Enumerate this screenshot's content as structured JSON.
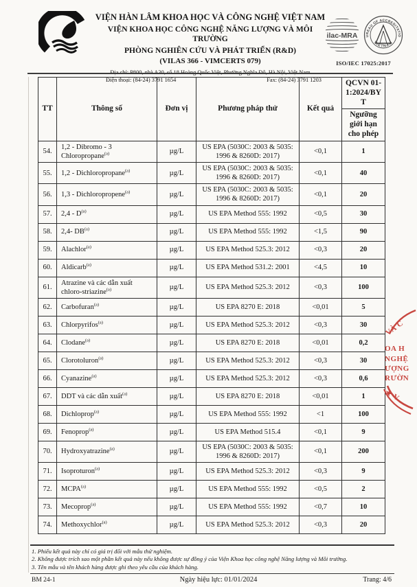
{
  "header": {
    "org_line1": "VIỆN HÀN LÂM KHOA HỌC VÀ CÔNG NGHỆ VIỆT NAM",
    "org_line2": "VIỆN KHOA HỌC CÔNG NGHỆ NĂNG LƯỢNG VÀ MÔI TRƯỜNG",
    "dept": "PHÒNG NGHIÊN CỨU VÀ PHÁT TRIỂN (R&D)",
    "certs": "(VILAS 366 - VIMCERTS 079)",
    "address": "Địa chỉ: P800, nhà A30, số 18 Hoàng Quốc Việt, Phường Nghĩa Đô, Hà Nội, Việt Nam",
    "phone": "Điện thoại: (84-24) 3791 1654",
    "fax": "Fax: (84-24) 3791 1203",
    "ilac_label": "ilac-MRA",
    "accreditation_ring_top": "BUREAU OF ACCREDITATION",
    "accreditation_ring_bottom": "VIETNAM",
    "iso_label": "ISO/IEC 17025:2017"
  },
  "table": {
    "headers": {
      "tt": "TT",
      "param": "Thông số",
      "unit": "Đơn vị",
      "method": "Phương pháp thử",
      "result": "Kết quả",
      "qcvn": "QCVN 01-1:2024/BYT",
      "limit": "Ngưỡng giới hạn cho phép"
    },
    "rows": [
      {
        "tt": "54.",
        "param": "1,2 - Dibromo - 3 Chloropropane",
        "sup": "(a)",
        "unit": "µg/L",
        "method": "US EPA (5030C: 2003 & 5035: 1996 & 8260D: 2017)",
        "result": "<0,1",
        "limit": "1"
      },
      {
        "tt": "55.",
        "param": "1,2 - Dichloropropane",
        "sup": "(a)",
        "unit": "µg/L",
        "method": "US EPA (5030C: 2003 & 5035: 1996 & 8260D: 2017)",
        "result": "<0,1",
        "limit": "40"
      },
      {
        "tt": "56.",
        "param": "1,3 - Dichloropropene",
        "sup": "(a)",
        "unit": "µg/L",
        "method": "US EPA (5030C: 2003 & 5035: 1996 & 8260D: 2017)",
        "result": "<0,1",
        "limit": "20"
      },
      {
        "tt": "57.",
        "param": "2,4 - D",
        "sup": "(a)",
        "unit": "µg/L",
        "method": "US EPA Method 555: 1992",
        "result": "<0,5",
        "limit": "30"
      },
      {
        "tt": "58.",
        "param": "2,4- DB",
        "sup": "(a)",
        "unit": "µg/L",
        "method": "US EPA Method 555: 1992",
        "result": "<1,5",
        "limit": "90"
      },
      {
        "tt": "59.",
        "param": "Alachlor",
        "sup": "(a)",
        "unit": "µg/L",
        "method": "US EPA Method 525.3: 2012",
        "result": "<0,3",
        "limit": "20"
      },
      {
        "tt": "60.",
        "param": "Aldicarb",
        "sup": "(a)",
        "unit": "µg/L",
        "method": "US EPA Method 531.2: 2001",
        "result": "<4,5",
        "limit": "10"
      },
      {
        "tt": "61.",
        "param": "Atrazine và các dẫn xuất chloro-striazine",
        "sup": "(a)",
        "unit": "µg/L",
        "method": "US EPA Method 525.3: 2012",
        "result": "<0,3",
        "limit": "100"
      },
      {
        "tt": "62.",
        "param": "Carbofuran",
        "sup": "(a)",
        "unit": "µg/L",
        "method": "US EPA 8270 E: 2018",
        "result": "<0,01",
        "limit": "5"
      },
      {
        "tt": "63.",
        "param": "Chlorpyrifos",
        "sup": "(a)",
        "unit": "µg/L",
        "method": "US EPA Method 525.3: 2012",
        "result": "<0,3",
        "limit": "30"
      },
      {
        "tt": "64.",
        "param": "Clodane",
        "sup": "(a)",
        "unit": "µg/L",
        "method": "US EPA 8270 E: 2018",
        "result": "<0,01",
        "limit": "0,2"
      },
      {
        "tt": "65.",
        "param": "Clorotoluron",
        "sup": "(a)",
        "unit": "µg/L",
        "method": "US EPA Method 525.3: 2012",
        "result": "<0,3",
        "limit": "30"
      },
      {
        "tt": "66.",
        "param": "Cyanazine",
        "sup": "(a)",
        "unit": "µg/L",
        "method": "US EPA Method 525.3: 2012",
        "result": "<0,3",
        "limit": "0,6"
      },
      {
        "tt": "67.",
        "param": "DDT và các dẫn xuất",
        "sup": "(a)",
        "unit": "µg/L",
        "method": "US EPA 8270 E: 2018",
        "result": "<0,01",
        "limit": "1"
      },
      {
        "tt": "68.",
        "param": "Dichloprop",
        "sup": "(a)",
        "unit": "µg/L",
        "method": "US EPA Method 555: 1992",
        "result": "<1",
        "limit": "100"
      },
      {
        "tt": "69.",
        "param": "Fenoprop",
        "sup": "(a)",
        "unit": "µg/L",
        "method": "US EPA Method 515.4",
        "result": "<0,1",
        "limit": "9"
      },
      {
        "tt": "70.",
        "param": "Hydroxyatrazine",
        "sup": "(a)",
        "unit": "µg/L",
        "method": "US EPA (5030C: 2003 & 5035: 1996 & 8260D: 2017)",
        "result": "<0,1",
        "limit": "200"
      },
      {
        "tt": "71.",
        "param": "Isoproturon",
        "sup": "(a)",
        "unit": "µg/L",
        "method": "US EPA Method 525.3: 2012",
        "result": "<0,3",
        "limit": "9"
      },
      {
        "tt": "72.",
        "param": "MCPA",
        "sup": "(a)",
        "unit": "µg/L",
        "method": "US EPA Method 555: 1992",
        "result": "<0,5",
        "limit": "2"
      },
      {
        "tt": "73.",
        "param": "Mecoprop",
        "sup": "(a)",
        "unit": "µg/L",
        "method": "US EPA Method 555: 1992",
        "result": "<0,7",
        "limit": "10"
      },
      {
        "tt": "74.",
        "param": "Methoxychlor",
        "sup": "(a)",
        "unit": "µg/L",
        "method": "US EPA Method 525.3: 2012",
        "result": "<0,3",
        "limit": "20"
      }
    ]
  },
  "stamp": {
    "color": "#c84740",
    "fragments": [
      "VÀ C",
      "OA H",
      "NGHỆ",
      "ƯỢNG",
      "RƯỜN",
      "★ V"
    ]
  },
  "footnotes": [
    "1. Phiếu kết quả này chỉ có giá trị đối với mẫu thử nghiệm.",
    "2. Không được trích sao một phần kết quả này nếu không được sự đồng ý của Viện Khoa học công nghệ Năng lượng và Môi trường.",
    "3. Tên mẫu và tên khách hàng được ghi theo yêu cầu của khách hàng."
  ],
  "footer": {
    "form_code": "BM 24-1",
    "effective_date": "Ngày hiệu lực: 01/01/2024",
    "page_info": "Trang: 4/6"
  }
}
